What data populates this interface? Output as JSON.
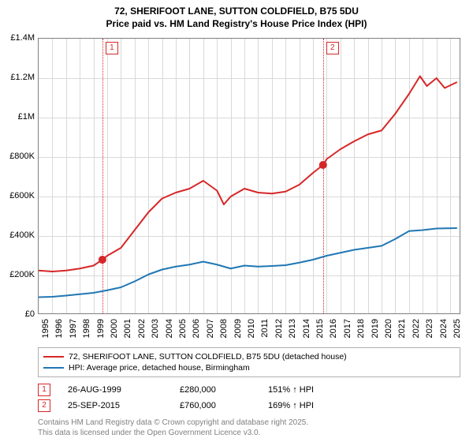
{
  "title_line1": "72, SHERIFOOT LANE, SUTTON COLDFIELD, B75 5DU",
  "title_line2": "Price paid vs. HM Land Registry's House Price Index (HPI)",
  "chart": {
    "type": "line",
    "background_color": "#ffffff",
    "grid_color": "#d9d9d9",
    "border_color": "#808080",
    "xlim": [
      1995,
      2025.8
    ],
    "ylim": [
      0,
      1400000
    ],
    "ytick_step": 200000,
    "yticks": [
      {
        "v": 0,
        "label": "£0"
      },
      {
        "v": 200000,
        "label": "£200K"
      },
      {
        "v": 400000,
        "label": "£400K"
      },
      {
        "v": 600000,
        "label": "£600K"
      },
      {
        "v": 800000,
        "label": "£800K"
      },
      {
        "v": 1000000,
        "label": "£1M"
      },
      {
        "v": 1200000,
        "label": "£1.2M"
      },
      {
        "v": 1400000,
        "label": "£1.4M"
      }
    ],
    "xticks": [
      1995,
      1996,
      1997,
      1998,
      1999,
      2000,
      2001,
      2002,
      2003,
      2004,
      2005,
      2006,
      2007,
      2008,
      2009,
      2010,
      2011,
      2012,
      2013,
      2014,
      2015,
      2016,
      2017,
      2018,
      2019,
      2020,
      2021,
      2022,
      2023,
      2024,
      2025
    ],
    "axis_fontsize": 11,
    "series": [
      {
        "name": "price",
        "color": "#d62728",
        "line_width": 2,
        "points": [
          [
            1995,
            225000
          ],
          [
            1996,
            220000
          ],
          [
            1997,
            225000
          ],
          [
            1998,
            235000
          ],
          [
            1999,
            250000
          ],
          [
            1999.65,
            280000
          ],
          [
            2000,
            300000
          ],
          [
            2001,
            340000
          ],
          [
            2002,
            430000
          ],
          [
            2003,
            520000
          ],
          [
            2004,
            590000
          ],
          [
            2005,
            620000
          ],
          [
            2006,
            640000
          ],
          [
            2007,
            680000
          ],
          [
            2008,
            630000
          ],
          [
            2008.5,
            560000
          ],
          [
            2009,
            600000
          ],
          [
            2010,
            640000
          ],
          [
            2011,
            620000
          ],
          [
            2012,
            615000
          ],
          [
            2013,
            625000
          ],
          [
            2014,
            660000
          ],
          [
            2015,
            720000
          ],
          [
            2015.73,
            760000
          ],
          [
            2016,
            790000
          ],
          [
            2017,
            840000
          ],
          [
            2018,
            880000
          ],
          [
            2019,
            915000
          ],
          [
            2020,
            935000
          ],
          [
            2021,
            1020000
          ],
          [
            2022,
            1120000
          ],
          [
            2022.8,
            1210000
          ],
          [
            2023.3,
            1160000
          ],
          [
            2024,
            1200000
          ],
          [
            2024.6,
            1150000
          ],
          [
            2025.5,
            1180000
          ]
        ]
      },
      {
        "name": "hpi",
        "color": "#1f77b4",
        "line_width": 2,
        "points": [
          [
            1995,
            90000
          ],
          [
            1996,
            92000
          ],
          [
            1997,
            98000
          ],
          [
            1998,
            105000
          ],
          [
            1999,
            112000
          ],
          [
            2000,
            125000
          ],
          [
            2001,
            140000
          ],
          [
            2002,
            170000
          ],
          [
            2003,
            205000
          ],
          [
            2004,
            230000
          ],
          [
            2005,
            245000
          ],
          [
            2006,
            255000
          ],
          [
            2007,
            270000
          ],
          [
            2008,
            255000
          ],
          [
            2009,
            235000
          ],
          [
            2010,
            250000
          ],
          [
            2011,
            245000
          ],
          [
            2012,
            248000
          ],
          [
            2013,
            252000
          ],
          [
            2014,
            265000
          ],
          [
            2015,
            280000
          ],
          [
            2016,
            300000
          ],
          [
            2017,
            315000
          ],
          [
            2018,
            330000
          ],
          [
            2019,
            340000
          ],
          [
            2020,
            350000
          ],
          [
            2021,
            385000
          ],
          [
            2022,
            425000
          ],
          [
            2023,
            430000
          ],
          [
            2024,
            438000
          ],
          [
            2025.5,
            440000
          ]
        ]
      }
    ],
    "markers": [
      {
        "x": 1999.65,
        "y": 280000,
        "color": "#d62728",
        "size": 5
      },
      {
        "x": 2015.73,
        "y": 760000,
        "color": "#d62728",
        "size": 5
      }
    ],
    "reference_lines": [
      {
        "x": 1999.65,
        "label": "1",
        "color": "#d62728"
      },
      {
        "x": 2015.73,
        "label": "2",
        "color": "#d62728"
      }
    ]
  },
  "legend": {
    "items": [
      {
        "color": "#d62728",
        "label": "72, SHERIFOOT LANE, SUTTON COLDFIELD, B75 5DU (detached house)"
      },
      {
        "color": "#1f77b4",
        "label": "HPI: Average price, detached house, Birmingham"
      }
    ]
  },
  "sales": [
    {
      "n": "1",
      "color": "#d62728",
      "date": "26-AUG-1999",
      "price": "£280,000",
      "hpi": "151% ↑ HPI"
    },
    {
      "n": "2",
      "color": "#d62728",
      "date": "25-SEP-2015",
      "price": "£760,000",
      "hpi": "169% ↑ HPI"
    }
  ],
  "footer_line1": "Contains HM Land Registry data © Crown copyright and database right 2025.",
  "footer_line2": "This data is licensed under the Open Government Licence v3.0."
}
